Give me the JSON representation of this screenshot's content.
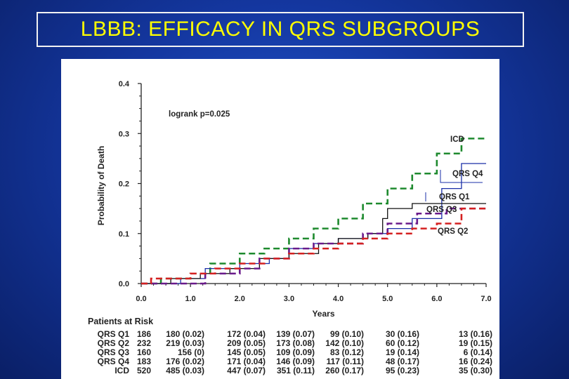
{
  "slide": {
    "title": "LBBB: EFFICACY IN QRS SUBGROUPS"
  },
  "chart_data": {
    "type": "line",
    "subtype": "kaplan-meier step curves",
    "title": "",
    "xlabel": "Years",
    "ylabel": "Probability of Death",
    "xlim": [
      0,
      7
    ],
    "ylim": [
      0,
      0.4
    ],
    "x_ticks": [
      "0.0",
      "1.0",
      "2.0",
      "3.0",
      "4.0",
      "5.0",
      "6.0",
      "7.0"
    ],
    "y_ticks": [
      "0.0",
      "0.1",
      "0.2",
      "0.3",
      "0.4"
    ],
    "annotation": "logrank p=0.025",
    "grid": false,
    "series": [
      {
        "name": "ICD",
        "color": "#1e8a2e",
        "style": "dashed",
        "points": [
          [
            0,
            0
          ],
          [
            0.4,
            0.01
          ],
          [
            1.0,
            0.02
          ],
          [
            1.4,
            0.04
          ],
          [
            2.0,
            0.06
          ],
          [
            2.5,
            0.07
          ],
          [
            3.0,
            0.09
          ],
          [
            3.5,
            0.11
          ],
          [
            4.0,
            0.13
          ],
          [
            4.5,
            0.16
          ],
          [
            5.0,
            0.19
          ],
          [
            5.5,
            0.22
          ],
          [
            6.0,
            0.26
          ],
          [
            6.5,
            0.29
          ],
          [
            7.0,
            0.29
          ]
        ]
      },
      {
        "name": "QRS Q4",
        "color": "#1a2fa8",
        "style": "solid",
        "points": [
          [
            0,
            0
          ],
          [
            0.8,
            0.01
          ],
          [
            1.3,
            0.03
          ],
          [
            2.0,
            0.04
          ],
          [
            2.6,
            0.05
          ],
          [
            3.0,
            0.07
          ],
          [
            3.5,
            0.08
          ],
          [
            4.0,
            0.09
          ],
          [
            4.6,
            0.1
          ],
          [
            5.0,
            0.11
          ],
          [
            5.5,
            0.13
          ],
          [
            6.1,
            0.19
          ],
          [
            6.5,
            0.24
          ],
          [
            7.0,
            0.24
          ]
        ]
      },
      {
        "name": "QRS Q1",
        "color": "#111111",
        "style": "solid",
        "points": [
          [
            0,
            0
          ],
          [
            0.6,
            0.01
          ],
          [
            1.2,
            0.02
          ],
          [
            1.8,
            0.03
          ],
          [
            2.4,
            0.05
          ],
          [
            3.0,
            0.06
          ],
          [
            3.6,
            0.08
          ],
          [
            4.0,
            0.09
          ],
          [
            4.6,
            0.1
          ],
          [
            4.9,
            0.13
          ],
          [
            5.0,
            0.15
          ],
          [
            5.5,
            0.16
          ],
          [
            7.0,
            0.16
          ]
        ]
      },
      {
        "name": "QRS Q3",
        "color": "#6a1a8a",
        "style": "dashed",
        "points": [
          [
            0,
            0
          ],
          [
            0.5,
            0.0
          ],
          [
            1.3,
            0.02
          ],
          [
            2.0,
            0.03
          ],
          [
            2.4,
            0.05
          ],
          [
            3.0,
            0.07
          ],
          [
            3.5,
            0.08
          ],
          [
            4.0,
            0.08
          ],
          [
            4.5,
            0.1
          ],
          [
            5.0,
            0.12
          ],
          [
            5.6,
            0.14
          ],
          [
            6.2,
            0.15
          ],
          [
            7.0,
            0.15
          ]
        ]
      },
      {
        "name": "QRS Q2",
        "color": "#d42020",
        "style": "dashed",
        "points": [
          [
            0,
            0
          ],
          [
            0.2,
            0.01
          ],
          [
            1.0,
            0.02
          ],
          [
            1.5,
            0.03
          ],
          [
            2.0,
            0.04
          ],
          [
            2.5,
            0.05
          ],
          [
            3.0,
            0.06
          ],
          [
            3.5,
            0.07
          ],
          [
            4.0,
            0.08
          ],
          [
            4.5,
            0.09
          ],
          [
            5.0,
            0.1
          ],
          [
            5.5,
            0.11
          ],
          [
            6.0,
            0.12
          ],
          [
            6.5,
            0.15
          ],
          [
            7.0,
            0.15
          ]
        ]
      }
    ]
  },
  "risk_table": {
    "title": "Patients at Risk",
    "rows": [
      {
        "name": "QRS Q1",
        "values": [
          "186",
          "180 (0.02)",
          "172 (0.04)",
          "139 (0.07)",
          "99 (0.10)",
          "30 (0.16)",
          "13 (0.16)"
        ]
      },
      {
        "name": "QRS Q2",
        "values": [
          "232",
          "219 (0.03)",
          "209 (0.05)",
          "173 (0.08)",
          "142 (0.10)",
          "60 (0.12)",
          "19 (0.15)"
        ]
      },
      {
        "name": "QRS Q3",
        "values": [
          "160",
          "156 (0)",
          "145 (0.05)",
          "109 (0.09)",
          "83 (0.12)",
          "19 (0.14)",
          "6 (0.14)"
        ]
      },
      {
        "name": "QRS Q4",
        "values": [
          "183",
          "176 (0.02)",
          "171 (0.04)",
          "146 (0.09)",
          "117 (0.11)",
          "48 (0.17)",
          "16 (0.24)"
        ]
      },
      {
        "name": "ICD",
        "values": [
          "520",
          "485 (0.03)",
          "447 (0.07)",
          "351 (0.11)",
          "260 (0.17)",
          "95 (0.23)",
          "35 (0.30)"
        ]
      }
    ]
  }
}
